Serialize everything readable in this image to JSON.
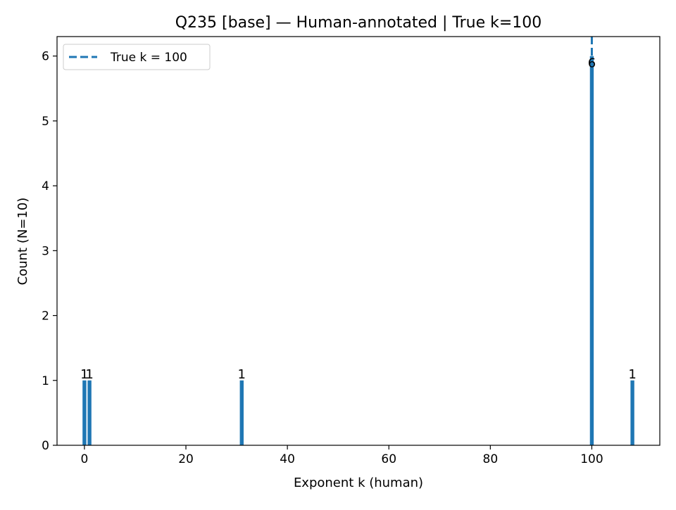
{
  "chart_data": {
    "type": "bar",
    "title": "Q235 [base] — Human-annotated | True k=100",
    "xlabel": "Exponent k (human)",
    "ylabel": "Count (N=10)",
    "xlim": [
      -5.4,
      113.4
    ],
    "ylim": [
      0,
      6.3
    ],
    "xticks": [
      0,
      20,
      40,
      60,
      80,
      100
    ],
    "yticks": [
      0,
      1,
      2,
      3,
      4,
      5,
      6
    ],
    "bar_color": "#1f77b4",
    "bars": [
      {
        "x": 0,
        "value": 1,
        "label": "1"
      },
      {
        "x": 1,
        "value": 1,
        "label": "1"
      },
      {
        "x": 31,
        "value": 1,
        "label": "1"
      },
      {
        "x": 100,
        "value": 6,
        "label": "6"
      },
      {
        "x": 108,
        "value": 1,
        "label": "1"
      }
    ],
    "reference_line": {
      "x": 100,
      "style": "dashed",
      "color": "#1f77b4",
      "label": "True k = 100"
    },
    "legend": {
      "position": "top-left",
      "entries": [
        "True k = 100"
      ]
    },
    "grid": false
  }
}
